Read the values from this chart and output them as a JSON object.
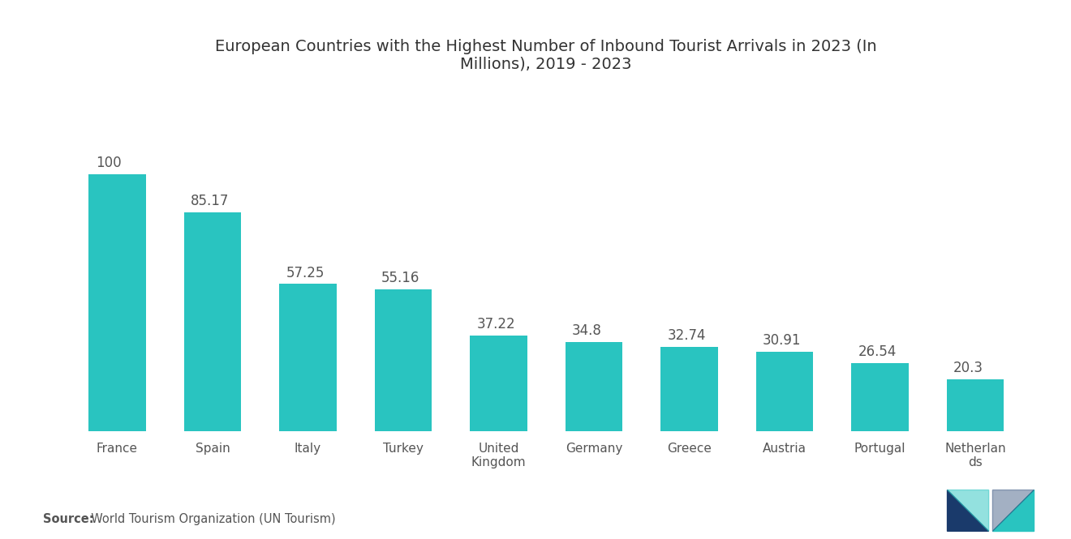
{
  "title": "European Countries with the Highest Number of Inbound Tourist Arrivals in 2023 (In\nMillions), 2019 - 2023",
  "categories": [
    "France",
    "Spain",
    "Italy",
    "Turkey",
    "United\nKingdom",
    "Germany",
    "Greece",
    "Austria",
    "Portugal",
    "Netherlan\nds"
  ],
  "values": [
    100,
    85.17,
    57.25,
    55.16,
    37.22,
    34.8,
    32.74,
    30.91,
    26.54,
    20.3
  ],
  "bar_color": "#29C4C0",
  "background_color": "#ffffff",
  "label_color": "#555555",
  "title_color": "#333333",
  "source_bold": "Source:",
  "source_rest": "  World Tourism Organization (UN Tourism)",
  "ylim": [
    0,
    130
  ],
  "bar_width": 0.6,
  "title_fontsize": 14,
  "label_fontsize": 12,
  "tick_fontsize": 11,
  "source_fontsize": 10.5,
  "logo_left_color": "#1a3a6b",
  "logo_right_color": "#29C4C0"
}
